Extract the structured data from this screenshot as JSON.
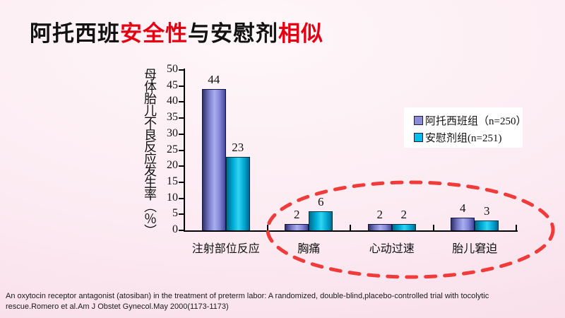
{
  "theme": {
    "background_center": "#fef7f9",
    "background_edge": "#f8dce8",
    "title_black": "#111111",
    "title_red": "#e60012",
    "axis_color": "#000000",
    "highlight_ellipse_color": "#f13a3a",
    "legend_background": "#ffffff"
  },
  "title": {
    "full_text": "阿托西班安全性与安慰剂相似",
    "parts": [
      {
        "text": "阿托西班",
        "color": "#111111"
      },
      {
        "text": "安全性",
        "color": "#e60012"
      },
      {
        "text": "与安慰剂",
        "color": "#111111"
      },
      {
        "text": "相似",
        "color": "#e60012"
      }
    ]
  },
  "chart_data": {
    "type": "bar",
    "categories": [
      "注射部位反应",
      "胸痛",
      "心动过速",
      "胎儿窘迫"
    ],
    "series": [
      {
        "name": "阿托西班组（n=250）",
        "values": [
          44,
          2,
          2,
          4
        ],
        "color": "#8a8cd8"
      },
      {
        "name": "安慰剂组(n=251)",
        "values": [
          23,
          6,
          2,
          3
        ],
        "color": "#00bfe8"
      }
    ],
    "ylabel": "母体胎儿不良反应发生率（％）",
    "xlabel": "",
    "ylim": [
      0,
      50
    ],
    "ytick_step": 5,
    "grid": false,
    "legend_position": "right-top",
    "value_labels": true,
    "annotation": "红色虚线椭圆圈出后三个类别（胸痛、心动过速、胎儿窘迫）"
  },
  "footer": {
    "line1": "An oxytocin receptor antagonist (atosiban) in the treatment of preterm labor: A randomized, double-blind,placebo-controlled trial with tocolytic",
    "line2": "rescue.Romero et al.Am J Obstet Gynecol.May 2000(1173-1173)"
  }
}
